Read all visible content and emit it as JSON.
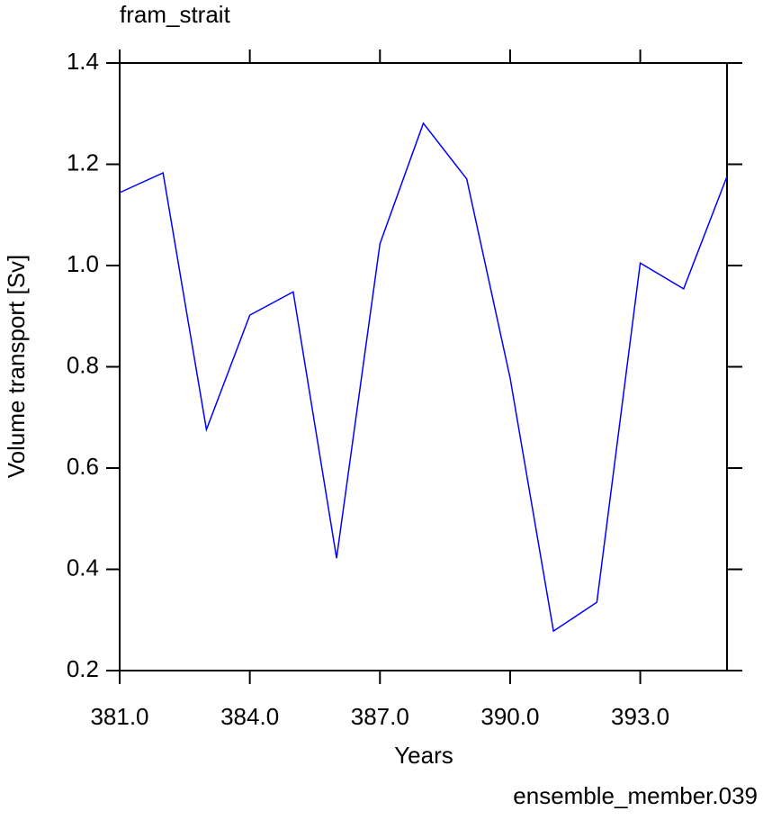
{
  "chart_data": {
    "type": "line",
    "title": "fram_strait",
    "x_label": "Years",
    "y_label": "Volume transport [Sv]",
    "annotation": "ensemble_member.039",
    "annotation_color": "#0000ff",
    "x": [
      381,
      382,
      383,
      384,
      385,
      386,
      387,
      388,
      389,
      390,
      391,
      392,
      393,
      394,
      395
    ],
    "series": [
      {
        "color": "#0000ff",
        "values": [
          1.144,
          1.183,
          0.676,
          0.902,
          0.948,
          0.422,
          1.043,
          1.281,
          1.171,
          0.778,
          0.278,
          0.335,
          1.005,
          0.954,
          1.176
        ]
      }
    ],
    "xlim": [
      381,
      395
    ],
    "xticks": [
      {
        "value": 381,
        "label": "381.0"
      },
      {
        "value": 384,
        "label": "384.0"
      },
      {
        "value": 387,
        "label": "387.0"
      },
      {
        "value": 390,
        "label": "390.0"
      },
      {
        "value": 393,
        "label": "393.0"
      }
    ],
    "ylim": [
      0.2,
      1.4
    ],
    "yticks": [
      0.2,
      0.4,
      0.6,
      0.8,
      {
        "value": 1.0,
        "label": "1.0"
      },
      1.2,
      1.4
    ],
    "grid": false
  }
}
